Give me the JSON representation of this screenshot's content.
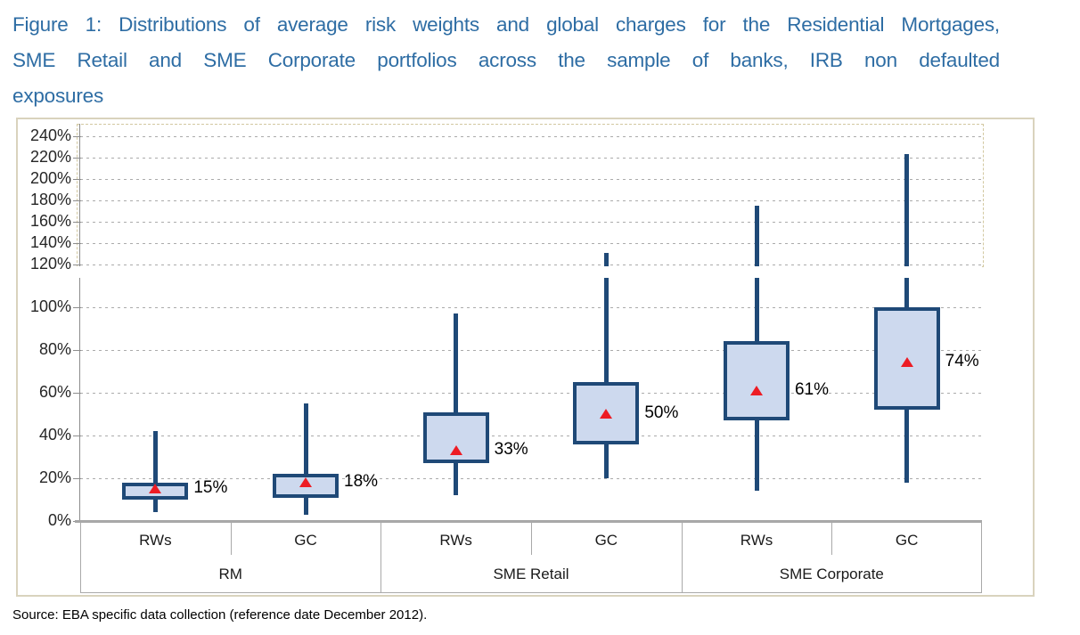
{
  "title": {
    "line1": "Figure 1: Distributions of average risk weights and global charges for the Residential Mortgages,",
    "line2": "SME Retail and SME Corporate portfolios across the sample of banks, IRB non defaulted",
    "line3": "exposures"
  },
  "source": "Source: EBA specific data collection (reference date December 2012).",
  "colors": {
    "title_text": "#2E6DA4",
    "box_fill": "#CDD9EE",
    "box_border": "#1F4977",
    "whisker": "#1F4977",
    "mean_marker": "#ED1C24",
    "gridline": "#ABABAB",
    "axis": "#8C8C8C",
    "table_border": "#A9A9A9",
    "frame_border": "#D9D3BD",
    "axis_break_dashed_border": "#D2C8A0"
  },
  "chart_data": {
    "type": "boxplot",
    "title": "Distributions of average risk weights and global charges, IRB non defaulted exposures",
    "ylabel": "",
    "xlabel": "",
    "y_axis": {
      "unit": "%",
      "upper_tick_labels": [
        "240%",
        "220%",
        "200%",
        "180%",
        "160%",
        "140%",
        "120%"
      ],
      "lower_tick_labels": [
        "100%",
        "80%",
        "60%",
        "40%",
        "20%",
        "0%"
      ],
      "lower_range": [
        0,
        120
      ],
      "upper_range": [
        120,
        240
      ],
      "axis_break_at": 120,
      "grid": "dashed"
    },
    "x_axis": {
      "group_labels": [
        "RM",
        "SME Retail",
        "SME Corporate"
      ],
      "series_labels_per_group": [
        "RWs",
        "GC"
      ]
    },
    "series": [
      {
        "group": "RM",
        "measure": "RWs",
        "whisker_low": 4,
        "box_low": 10,
        "mean": 15,
        "box_high": 18,
        "whisker_high": 42,
        "mean_label": "15%"
      },
      {
        "group": "RM",
        "measure": "GC",
        "whisker_low": 3,
        "box_low": 11,
        "mean": 18,
        "box_high": 22,
        "whisker_high": 55,
        "mean_label": "18%"
      },
      {
        "group": "SME Retail",
        "measure": "RWs",
        "whisker_low": 12,
        "box_low": 27,
        "mean": 33,
        "box_high": 51,
        "whisker_high": 97,
        "mean_label": "33%"
      },
      {
        "group": "SME Retail",
        "measure": "GC",
        "whisker_low": 20,
        "box_low": 36,
        "mean": 50,
        "box_high": 65,
        "whisker_high": 131,
        "mean_label": "50%"
      },
      {
        "group": "SME Corporate",
        "measure": "RWs",
        "whisker_low": 14,
        "box_low": 47,
        "mean": 61,
        "box_high": 84,
        "whisker_high": 175,
        "mean_label": "61%"
      },
      {
        "group": "SME Corporate",
        "measure": "GC",
        "whisker_low": 18,
        "box_low": 52,
        "mean": 74,
        "box_high": 100,
        "whisker_high": 223,
        "mean_label": "74%"
      }
    ]
  }
}
